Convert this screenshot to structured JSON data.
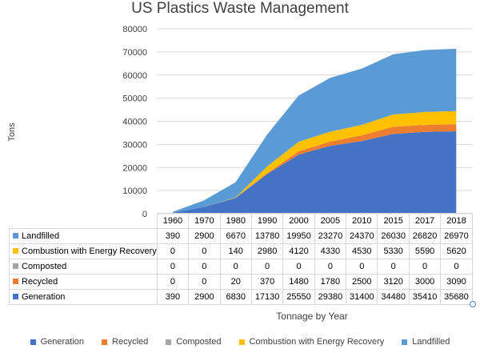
{
  "chart_data": {
    "type": "area",
    "stacked": true,
    "title": "US Plastics Waste Management",
    "ylabel": "Tons",
    "xlabel": "Tonnage by Year",
    "ylim": [
      0,
      80000
    ],
    "yticks": [
      0,
      10000,
      20000,
      30000,
      40000,
      50000,
      60000,
      70000,
      80000
    ],
    "categories": [
      "1960",
      "1970",
      "1980",
      "1990",
      "2000",
      "2005",
      "2010",
      "2015",
      "2017",
      "2018"
    ],
    "series": [
      {
        "name": "Generation",
        "color": "#4472c4",
        "values": [
          390,
          2900,
          6830,
          17130,
          25550,
          29380,
          31400,
          34480,
          35410,
          35680
        ]
      },
      {
        "name": "Recycled",
        "color": "#ed7d31",
        "values": [
          0,
          0,
          20,
          370,
          1480,
          1780,
          2500,
          3120,
          3000,
          3090
        ]
      },
      {
        "name": "Composted",
        "color": "#a5a5a5",
        "values": [
          0,
          0,
          0,
          0,
          0,
          0,
          0,
          0,
          0,
          0
        ]
      },
      {
        "name": "Combustion with Energy Recovery",
        "color": "#ffc000",
        "values": [
          0,
          0,
          140,
          2980,
          4120,
          4330,
          4530,
          5330,
          5590,
          5620
        ]
      },
      {
        "name": "Landfilled",
        "color": "#5b9bd5",
        "values": [
          390,
          2900,
          6670,
          13780,
          19950,
          23270,
          24370,
          26030,
          26820,
          26970
        ]
      }
    ],
    "legend_position": "bottom",
    "data_table": true,
    "table_row_order": [
      "Landfilled",
      "Combustion with Energy Recovery",
      "Composted",
      "Recycled",
      "Generation"
    ]
  }
}
